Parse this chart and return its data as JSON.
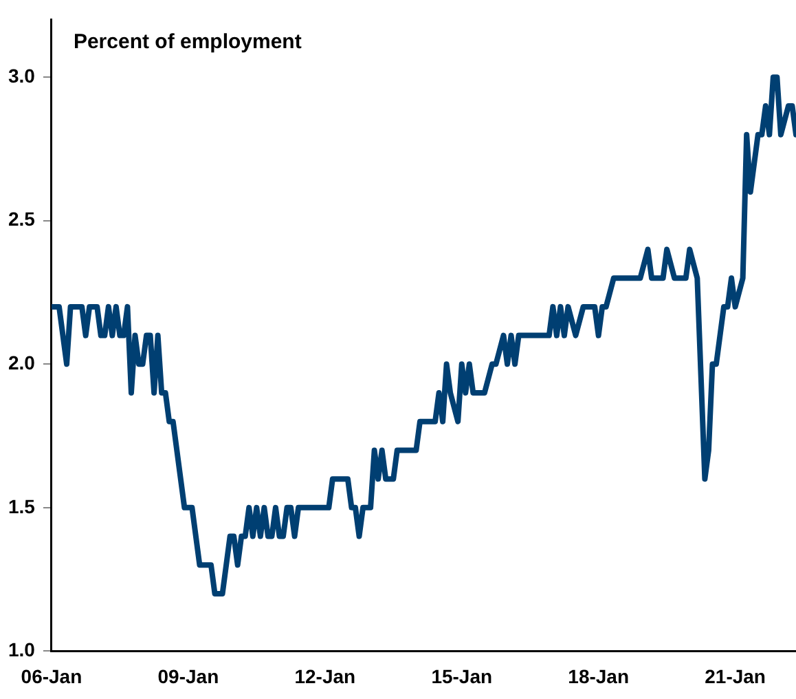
{
  "chart_data": {
    "type": "line",
    "ylabel": "Percent of employment",
    "x": [
      "2006-01",
      "2006-03",
      "2006-05",
      "2006-06",
      "2006-09",
      "2006-10",
      "2006-11",
      "2007-01",
      "2007-02",
      "2007-03",
      "2007-04",
      "2007-05",
      "2007-06",
      "2007-07",
      "2007-08",
      "2007-09",
      "2007-10",
      "2007-11",
      "2007-12",
      "2008-01",
      "2008-02",
      "2008-03",
      "2008-04",
      "2008-05",
      "2008-06",
      "2008-07",
      "2008-08",
      "2008-09",
      "2008-12",
      "2009-02",
      "2009-04",
      "2009-07",
      "2009-08",
      "2009-10",
      "2009-12",
      "2010-01",
      "2010-02",
      "2010-03",
      "2010-04",
      "2010-05",
      "2010-06",
      "2010-07",
      "2010-08",
      "2010-09",
      "2010-10",
      "2010-11",
      "2010-12",
      "2011-01",
      "2011-02",
      "2011-03",
      "2011-04",
      "2011-05",
      "2011-06",
      "2012-02",
      "2012-03",
      "2012-07",
      "2012-08",
      "2012-09",
      "2012-10",
      "2012-11",
      "2013-01",
      "2013-02",
      "2013-03",
      "2013-04",
      "2013-05",
      "2013-07",
      "2013-08",
      "2014-01",
      "2014-02",
      "2014-06",
      "2014-07",
      "2014-08",
      "2014-09",
      "2014-10",
      "2014-12",
      "2015-01",
      "2015-02",
      "2015-03",
      "2015-04",
      "2015-07",
      "2015-09",
      "2015-10",
      "2015-12",
      "2016-01",
      "2016-02",
      "2016-03",
      "2016-04",
      "2016-05",
      "2016-12",
      "2017-01",
      "2017-02",
      "2017-03",
      "2017-04",
      "2017-05",
      "2017-07",
      "2017-09",
      "2017-12",
      "2018-01",
      "2018-02",
      "2018-03",
      "2018-05",
      "2018-12",
      "2019-02",
      "2019-03",
      "2019-06",
      "2019-07",
      "2019-09",
      "2019-12",
      "2020-01",
      "2020-03",
      "2020-05",
      "2020-06",
      "2020-07",
      "2020-08",
      "2020-10",
      "2020-11",
      "2020-12",
      "2021-01",
      "2021-03",
      "2021-04",
      "2021-05",
      "2021-07",
      "2021-08",
      "2021-09",
      "2021-10",
      "2021-11",
      "2021-12",
      "2022-01",
      "2022-03",
      "2022-04",
      "2022-05"
    ],
    "series": [
      {
        "color": "#003f72",
        "values": [
          2.2,
          2.2,
          2.0,
          2.2,
          2.2,
          2.1,
          2.2,
          2.2,
          2.1,
          2.1,
          2.2,
          2.1,
          2.2,
          2.1,
          2.1,
          2.2,
          1.9,
          2.1,
          2.0,
          2.0,
          2.1,
          2.1,
          1.9,
          2.1,
          1.9,
          1.9,
          1.8,
          1.8,
          1.5,
          1.5,
          1.3,
          1.3,
          1.2,
          1.2,
          1.4,
          1.4,
          1.3,
          1.4,
          1.4,
          1.5,
          1.4,
          1.5,
          1.4,
          1.5,
          1.4,
          1.4,
          1.5,
          1.4,
          1.4,
          1.5,
          1.5,
          1.4,
          1.5,
          1.5,
          1.6,
          1.6,
          1.5,
          1.5,
          1.4,
          1.5,
          1.5,
          1.7,
          1.6,
          1.7,
          1.6,
          1.6,
          1.7,
          1.7,
          1.8,
          1.8,
          1.9,
          1.8,
          2.0,
          1.9,
          1.8,
          2.0,
          1.9,
          2.0,
          1.9,
          1.9,
          2.0,
          2.0,
          2.1,
          2.0,
          2.1,
          2.0,
          2.1,
          2.1,
          2.1,
          2.2,
          2.1,
          2.2,
          2.1,
          2.2,
          2.1,
          2.2,
          2.2,
          2.1,
          2.2,
          2.2,
          2.3,
          2.3,
          2.4,
          2.3,
          2.3,
          2.4,
          2.3,
          2.3,
          2.4,
          2.3,
          1.6,
          1.7,
          2.0,
          2.0,
          2.2,
          2.2,
          2.3,
          2.2,
          2.3,
          2.8,
          2.6,
          2.8,
          2.8,
          2.9,
          2.8,
          3.0,
          3.0,
          2.8,
          2.9,
          2.9,
          2.8
        ]
      }
    ],
    "xlim": [
      "2006-01",
      "2022-05"
    ],
    "xticks": [
      {
        "value": "2006-01",
        "label": "06-Jan"
      },
      {
        "value": "2009-01",
        "label": "09-Jan"
      },
      {
        "value": "2012-01",
        "label": "12-Jan"
      },
      {
        "value": "2015-01",
        "label": "15-Jan"
      },
      {
        "value": "2018-01",
        "label": "18-Jan"
      },
      {
        "value": "2021-01",
        "label": "21-Jan"
      }
    ],
    "ylim": [
      1.0,
      3.2
    ],
    "yticks": [
      {
        "value": 1.0,
        "label": "1.0"
      },
      {
        "value": 1.5,
        "label": "1.5"
      },
      {
        "value": 2.0,
        "label": "2.0"
      },
      {
        "value": 2.5,
        "label": "2.5"
      },
      {
        "value": 3.0,
        "label": "3.0"
      }
    ],
    "grid": false,
    "legend": false,
    "marker": "none",
    "line_style": "solid"
  }
}
